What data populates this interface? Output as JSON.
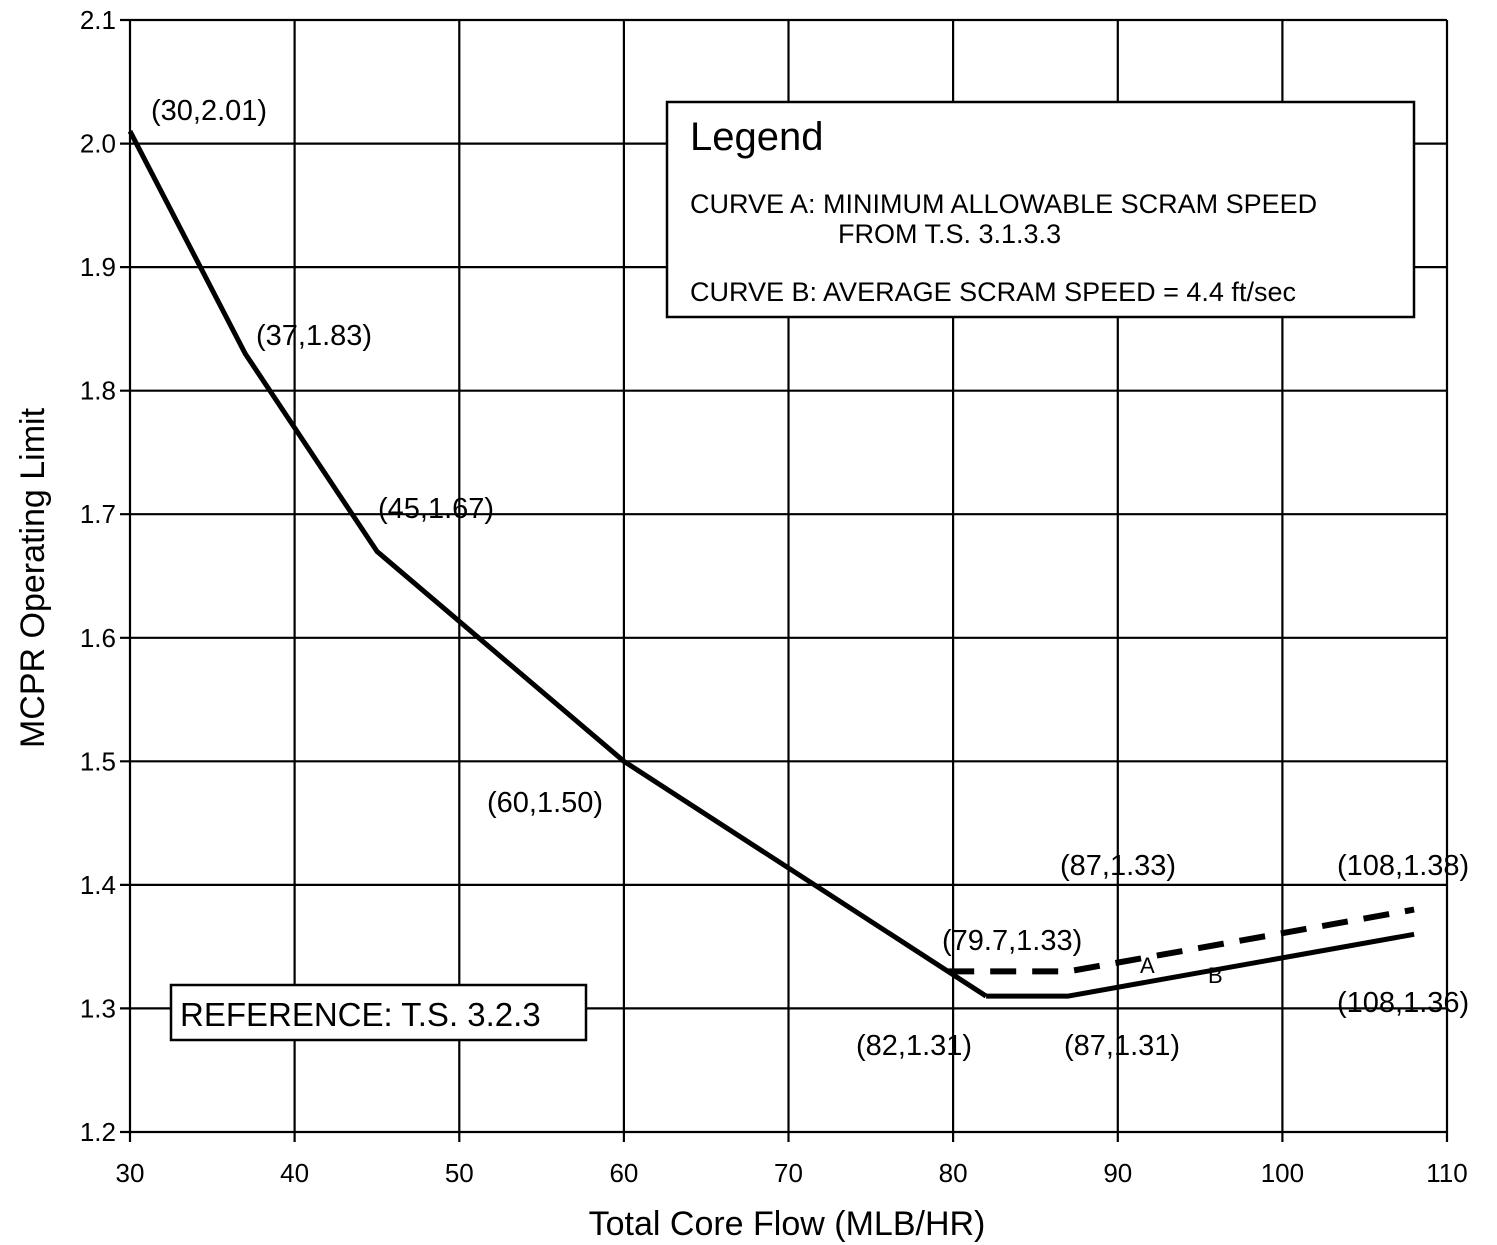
{
  "chart_data": {
    "type": "line",
    "xlabel": "Total Core Flow (MLB/HR)",
    "ylabel": "MCPR Operating Limit",
    "xlim": [
      30,
      110
    ],
    "ylim": [
      1.2,
      2.1
    ],
    "x_ticks": [
      30,
      40,
      50,
      60,
      70,
      80,
      90,
      100,
      110
    ],
    "y_ticks": [
      1.2,
      1.3,
      1.4,
      1.5,
      1.6,
      1.7,
      1.8,
      1.9,
      2.0,
      2.1
    ],
    "x_tick_labels": [
      "30",
      "40",
      "50",
      "60",
      "70",
      "80",
      "90",
      "100",
      "110"
    ],
    "y_tick_labels": [
      "1.2",
      "1.3",
      "1.4",
      "1.5",
      "1.6",
      "1.7",
      "1.8",
      "1.9",
      "2.0",
      "2.1"
    ],
    "grid": true,
    "series": [
      {
        "tag": "",
        "style": "solid",
        "x": [
          30,
          37,
          45,
          60,
          82
        ],
        "y": [
          2.01,
          1.83,
          1.67,
          1.5,
          1.31
        ]
      },
      {
        "tag": "A",
        "style": "dashed",
        "x": [
          79.7,
          87,
          108
        ],
        "y": [
          1.33,
          1.33,
          1.38
        ]
      },
      {
        "tag": "B",
        "style": "solid",
        "x": [
          82,
          87,
          108
        ],
        "y": [
          1.31,
          1.31,
          1.36
        ]
      }
    ],
    "annotations": [
      {
        "text": "(30,2.01)"
      },
      {
        "text": "(37,1.83)"
      },
      {
        "text": "(45,1.67)"
      },
      {
        "text": "(60,1.50)"
      },
      {
        "text": "(87,1.33)"
      },
      {
        "text": "(108,1.38)"
      },
      {
        "text": "(79.7,1.33)"
      },
      {
        "text": "(108,1.36)"
      },
      {
        "text": "(82,1.31)"
      },
      {
        "text": "(87,1.31)"
      }
    ],
    "legend": {
      "title": "Legend",
      "placement": "top-right",
      "lines": [
        "CURVE A: MINIMUM ALLOWABLE SCRAM SPEED",
        "FROM T.S. 3.1.3.3",
        "CURVE B: AVERAGE SCRAM SPEED = 4.4 ft/sec"
      ]
    },
    "reference_note": "REFERENCE: T.S. 3.2.3"
  }
}
